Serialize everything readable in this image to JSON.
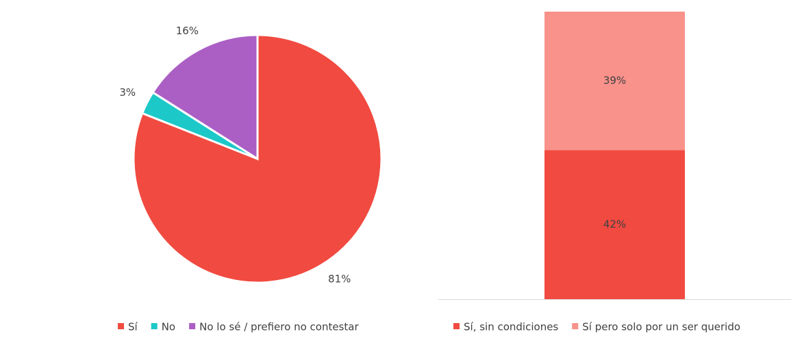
{
  "chart_data": [
    {
      "type": "pie",
      "categories": [
        "Sí",
        "No",
        "No lo sé / prefiero no contestar"
      ],
      "values": [
        81,
        3,
        16
      ],
      "value_labels": [
        "81%",
        "3%",
        "16%"
      ],
      "colors": [
        "#f14a40",
        "#1cc8c8",
        "#ab5fc4"
      ]
    },
    {
      "type": "stacked_bar",
      "categories": [
        null
      ],
      "ylim": [
        0,
        81
      ],
      "series": [
        {
          "name": "Sí, sin condiciones",
          "color": "#f14a40",
          "values": [
            42
          ],
          "value_labels": [
            "42%"
          ]
        },
        {
          "name": "Sí pero solo por un ser querido",
          "color": "#f8928b",
          "values": [
            39
          ],
          "value_labels": [
            "39%"
          ]
        }
      ]
    }
  ]
}
